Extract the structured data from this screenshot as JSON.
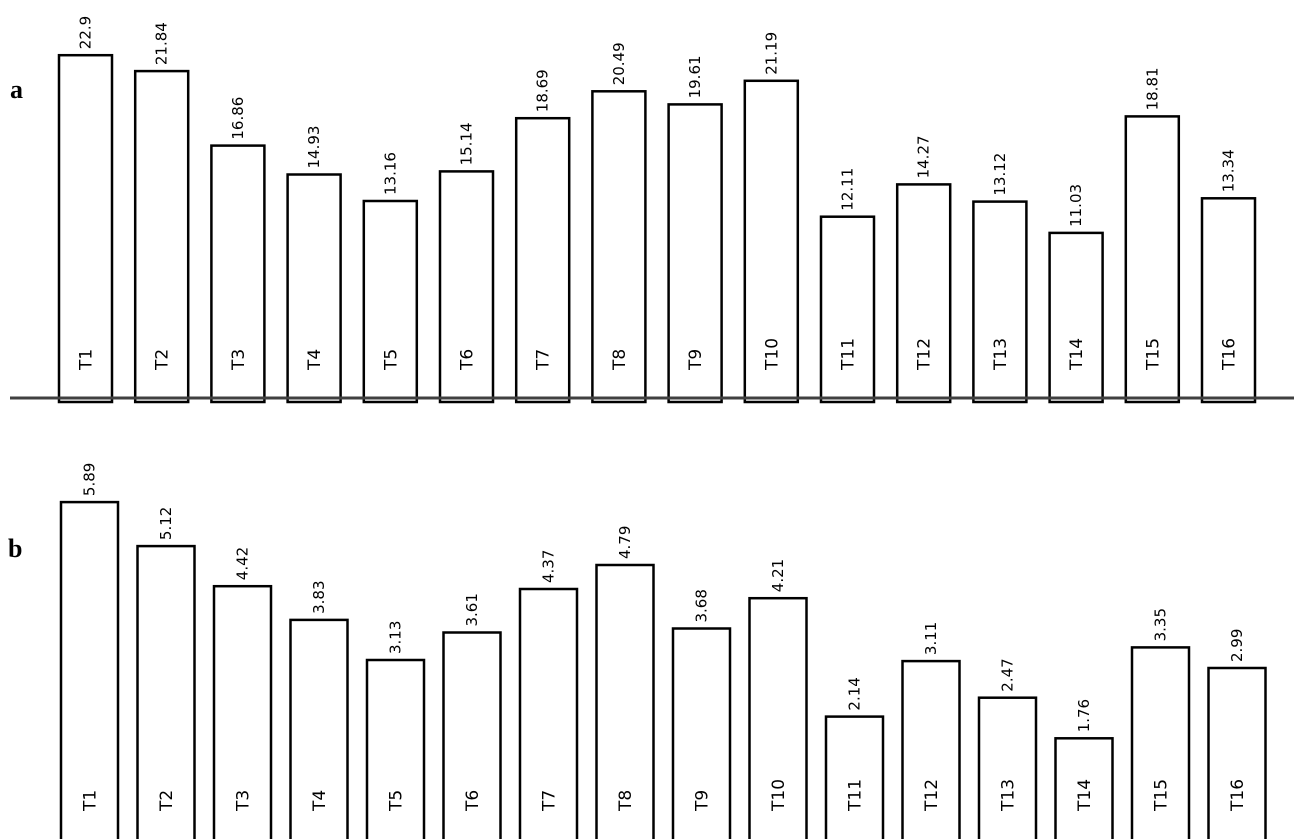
{
  "chart_data": [
    {
      "type": "bar",
      "panel_label": "a",
      "categories": [
        "T1",
        "T2",
        "T3",
        "T4",
        "T5",
        "T6",
        "T7",
        "T8",
        "T9",
        "T10",
        "T11",
        "T12",
        "T13",
        "T14",
        "T15",
        "T16"
      ],
      "values": [
        22.9,
        21.84,
        16.86,
        14.93,
        13.16,
        15.14,
        18.69,
        20.49,
        19.61,
        21.19,
        12.11,
        14.27,
        13.12,
        11.03,
        18.81,
        13.34
      ],
      "value_labels": [
        "22.9",
        "21.84",
        "16.86",
        "14.93",
        "13.16",
        "15.14",
        "18.69",
        "20.49",
        "19.61",
        "21.19",
        "12.11",
        "14.27",
        "13.12",
        "11.03",
        "18.81",
        "13.34"
      ],
      "title": "",
      "xlabel": "",
      "ylabel": "",
      "grid": false,
      "legend": "none",
      "colors": {
        "bar_fill": "#ffffff",
        "bar_stroke": "#000000",
        "axis": "#404040"
      }
    },
    {
      "type": "bar",
      "panel_label": "b",
      "categories": [
        "T1",
        "T2",
        "T3",
        "T4",
        "T5",
        "T6",
        "T7",
        "T8",
        "T9",
        "T10",
        "T11",
        "T12",
        "T13",
        "T14",
        "T15",
        "T16"
      ],
      "values": [
        5.89,
        5.12,
        4.42,
        3.83,
        3.13,
        3.61,
        4.37,
        4.79,
        3.68,
        4.21,
        2.14,
        3.11,
        2.47,
        1.76,
        3.35,
        2.99
      ],
      "value_labels": [
        "5.89",
        "5.12",
        "4.42",
        "3.83",
        "3.13",
        "3.61",
        "4.37",
        "4.79",
        "3.68",
        "4.21",
        "2.14",
        "3.11",
        "2.47",
        "1.76",
        "3.35",
        "2.99"
      ],
      "title": "",
      "xlabel": "",
      "ylabel": "",
      "grid": false,
      "legend": "none",
      "colors": {
        "bar_fill": "#ffffff",
        "bar_stroke": "#000000",
        "axis": "#404040"
      }
    }
  ]
}
